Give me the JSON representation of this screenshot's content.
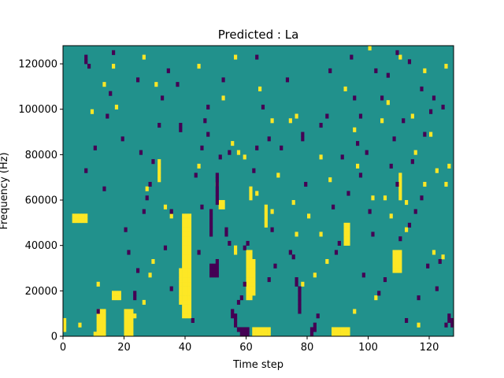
{
  "chart_data": {
    "type": "heatmap",
    "title": "Predicted : La",
    "xlabel": "Time step",
    "ylabel": "Frequency (Hz)",
    "xlim": [
      0,
      128
    ],
    "ylim": [
      0,
      128000
    ],
    "x_ticks": [
      0,
      20,
      40,
      60,
      80,
      100,
      120
    ],
    "y_ticks": [
      0,
      20000,
      40000,
      60000,
      80000,
      100000,
      120000
    ],
    "n_time_steps": 128,
    "n_freq_bins": 64,
    "value_levels": [
      -1,
      0,
      1
    ],
    "colors": {
      "-1": "#440154",
      "0": "#21918c",
      "1": "#fde725"
    },
    "background_value": 0,
    "grid": false,
    "cells_high": [
      [
        0,
        1
      ],
      [
        0,
        2
      ],
      [
        0,
        3
      ],
      [
        10,
        0
      ],
      [
        11,
        0
      ],
      [
        11,
        1
      ],
      [
        11,
        2
      ],
      [
        11,
        3
      ],
      [
        11,
        4
      ],
      [
        11,
        5
      ],
      [
        12,
        0
      ],
      [
        12,
        1
      ],
      [
        12,
        2
      ],
      [
        12,
        3
      ],
      [
        12,
        4
      ],
      [
        12,
        5
      ],
      [
        13,
        0
      ],
      [
        13,
        1
      ],
      [
        13,
        2
      ],
      [
        13,
        3
      ],
      [
        13,
        4
      ],
      [
        13,
        5
      ],
      [
        20,
        0
      ],
      [
        20,
        1
      ],
      [
        20,
        2
      ],
      [
        20,
        3
      ],
      [
        20,
        4
      ],
      [
        20,
        5
      ],
      [
        21,
        0
      ],
      [
        21,
        1
      ],
      [
        21,
        2
      ],
      [
        21,
        3
      ],
      [
        21,
        4
      ],
      [
        21,
        5
      ],
      [
        22,
        0
      ],
      [
        22,
        1
      ],
      [
        22,
        2
      ],
      [
        22,
        3
      ],
      [
        22,
        4
      ],
      [
        22,
        5
      ],
      [
        39,
        4
      ],
      [
        39,
        5
      ],
      [
        39,
        6
      ],
      [
        39,
        7
      ],
      [
        39,
        8
      ],
      [
        39,
        9
      ],
      [
        39,
        10
      ],
      [
        39,
        11
      ],
      [
        39,
        12
      ],
      [
        39,
        13
      ],
      [
        39,
        14
      ],
      [
        39,
        15
      ],
      [
        39,
        16
      ],
      [
        39,
        17
      ],
      [
        39,
        18
      ],
      [
        39,
        19
      ],
      [
        39,
        20
      ],
      [
        39,
        21
      ],
      [
        39,
        22
      ],
      [
        39,
        23
      ],
      [
        39,
        24
      ],
      [
        39,
        25
      ],
      [
        39,
        26
      ],
      [
        40,
        4
      ],
      [
        40,
        5
      ],
      [
        40,
        6
      ],
      [
        40,
        7
      ],
      [
        40,
        8
      ],
      [
        40,
        9
      ],
      [
        40,
        10
      ],
      [
        40,
        11
      ],
      [
        40,
        12
      ],
      [
        40,
        13
      ],
      [
        40,
        14
      ],
      [
        40,
        15
      ],
      [
        40,
        16
      ],
      [
        40,
        17
      ],
      [
        40,
        18
      ],
      [
        40,
        19
      ],
      [
        40,
        20
      ],
      [
        40,
        21
      ],
      [
        40,
        22
      ],
      [
        40,
        23
      ],
      [
        40,
        24
      ],
      [
        40,
        25
      ],
      [
        40,
        26
      ],
      [
        41,
        4
      ],
      [
        41,
        5
      ],
      [
        41,
        6
      ],
      [
        41,
        7
      ],
      [
        41,
        8
      ],
      [
        41,
        9
      ],
      [
        41,
        10
      ],
      [
        41,
        11
      ],
      [
        41,
        12
      ],
      [
        41,
        13
      ],
      [
        41,
        14
      ],
      [
        41,
        15
      ],
      [
        41,
        16
      ],
      [
        41,
        17
      ],
      [
        41,
        18
      ],
      [
        41,
        19
      ],
      [
        41,
        20
      ],
      [
        41,
        21
      ],
      [
        41,
        22
      ],
      [
        41,
        23
      ],
      [
        41,
        24
      ],
      [
        41,
        25
      ],
      [
        41,
        26
      ],
      [
        38,
        7
      ],
      [
        38,
        8
      ],
      [
        38,
        9
      ],
      [
        38,
        10
      ],
      [
        38,
        11
      ],
      [
        38,
        12
      ],
      [
        38,
        13
      ],
      [
        38,
        14
      ],
      [
        60,
        8
      ],
      [
        60,
        9
      ],
      [
        60,
        10
      ],
      [
        60,
        11
      ],
      [
        60,
        12
      ],
      [
        60,
        13
      ],
      [
        60,
        14
      ],
      [
        60,
        15
      ],
      [
        60,
        16
      ],
      [
        60,
        17
      ],
      [
        60,
        18
      ],
      [
        61,
        8
      ],
      [
        61,
        9
      ],
      [
        61,
        10
      ],
      [
        61,
        11
      ],
      [
        61,
        12
      ],
      [
        61,
        13
      ],
      [
        61,
        14
      ],
      [
        61,
        15
      ],
      [
        61,
        16
      ],
      [
        61,
        17
      ],
      [
        61,
        18
      ],
      [
        62,
        9
      ],
      [
        62,
        10
      ],
      [
        62,
        11
      ],
      [
        62,
        12
      ],
      [
        62,
        13
      ],
      [
        62,
        14
      ],
      [
        62,
        15
      ],
      [
        62,
        16
      ],
      [
        62,
        0
      ],
      [
        62,
        1
      ],
      [
        63,
        0
      ],
      [
        63,
        1
      ],
      [
        64,
        0
      ],
      [
        64,
        1
      ],
      [
        65,
        0
      ],
      [
        65,
        1
      ],
      [
        66,
        0
      ],
      [
        66,
        1
      ],
      [
        67,
        0
      ],
      [
        67,
        1
      ],
      [
        88,
        0
      ],
      [
        88,
        1
      ],
      [
        89,
        0
      ],
      [
        89,
        1
      ],
      [
        90,
        0
      ],
      [
        90,
        1
      ],
      [
        91,
        0
      ],
      [
        91,
        1
      ],
      [
        92,
        0
      ],
      [
        92,
        1
      ],
      [
        93,
        0
      ],
      [
        93,
        1
      ],
      [
        108,
        14
      ],
      [
        108,
        15
      ],
      [
        108,
        16
      ],
      [
        108,
        17
      ],
      [
        108,
        18
      ],
      [
        109,
        14
      ],
      [
        109,
        15
      ],
      [
        109,
        16
      ],
      [
        109,
        17
      ],
      [
        109,
        18
      ],
      [
        110,
        14
      ],
      [
        110,
        15
      ],
      [
        110,
        16
      ],
      [
        110,
        17
      ],
      [
        110,
        18
      ],
      [
        3,
        25
      ],
      [
        3,
        26
      ],
      [
        4,
        25
      ],
      [
        4,
        26
      ],
      [
        5,
        25
      ],
      [
        5,
        26
      ],
      [
        6,
        25
      ],
      [
        6,
        26
      ],
      [
        7,
        25
      ],
      [
        7,
        26
      ],
      [
        31,
        34
      ],
      [
        31,
        35
      ],
      [
        31,
        36
      ],
      [
        31,
        37
      ],
      [
        31,
        38
      ],
      [
        51,
        28
      ],
      [
        51,
        29
      ],
      [
        52,
        28
      ],
      [
        52,
        29
      ],
      [
        61,
        30
      ],
      [
        61,
        31
      ],
      [
        61,
        32
      ],
      [
        66,
        24
      ],
      [
        66,
        25
      ],
      [
        66,
        26
      ],
      [
        66,
        27
      ],
      [
        66,
        28
      ],
      [
        92,
        20
      ],
      [
        92,
        21
      ],
      [
        92,
        22
      ],
      [
        92,
        23
      ],
      [
        92,
        24
      ],
      [
        93,
        20
      ],
      [
        93,
        21
      ],
      [
        93,
        22
      ],
      [
        93,
        23
      ],
      [
        93,
        24
      ],
      [
        110,
        30
      ],
      [
        110,
        31
      ],
      [
        110,
        32
      ],
      [
        110,
        33
      ],
      [
        110,
        34
      ],
      [
        110,
        35
      ],
      [
        16,
        8
      ],
      [
        16,
        9
      ],
      [
        17,
        8
      ],
      [
        17,
        9
      ],
      [
        18,
        8
      ],
      [
        18,
        9
      ],
      [
        11,
        11
      ],
      [
        26,
        7
      ],
      [
        28,
        13
      ],
      [
        29,
        16
      ],
      [
        56,
        18
      ],
      [
        56,
        19
      ],
      [
        68,
        27
      ],
      [
        76,
        22
      ],
      [
        78,
        11
      ],
      [
        82,
        13
      ],
      [
        84,
        22
      ],
      [
        86,
        16
      ],
      [
        95,
        5
      ],
      [
        102,
        8
      ],
      [
        105,
        30
      ],
      [
        107,
        26
      ],
      [
        112,
        23
      ],
      [
        116,
        2
      ],
      [
        121,
        18
      ],
      [
        124,
        17
      ],
      [
        125,
        33
      ],
      [
        126,
        37
      ],
      [
        16,
        59
      ],
      [
        17,
        50
      ],
      [
        26,
        61
      ],
      [
        30,
        55
      ],
      [
        44,
        59
      ],
      [
        52,
        52
      ],
      [
        56,
        61
      ],
      [
        64,
        54
      ],
      [
        68,
        47
      ],
      [
        76,
        48
      ],
      [
        92,
        54
      ],
      [
        104,
        47
      ],
      [
        110,
        61
      ],
      [
        114,
        48
      ],
      [
        118,
        58
      ],
      [
        125,
        59
      ],
      [
        9,
        49
      ],
      [
        13,
        55
      ],
      [
        55,
        42
      ],
      [
        59,
        39
      ],
      [
        74,
        47
      ],
      [
        84,
        39
      ],
      [
        95,
        45
      ],
      [
        100,
        63
      ],
      [
        106,
        51
      ],
      [
        115,
        40
      ],
      [
        120,
        44
      ],
      [
        5,
        2
      ],
      [
        23,
        4
      ],
      [
        27,
        32
      ],
      [
        33,
        28
      ],
      [
        35,
        26
      ],
      [
        44,
        37
      ],
      [
        50,
        33
      ],
      [
        57,
        40
      ],
      [
        63,
        31
      ],
      [
        70,
        35
      ],
      [
        75,
        29
      ],
      [
        80,
        26
      ],
      [
        87,
        34
      ],
      [
        96,
        37
      ],
      [
        101,
        30
      ],
      [
        112,
        29
      ],
      [
        118,
        33
      ],
      [
        122,
        36
      ]
    ],
    "cells_low": [
      [
        7,
        60
      ],
      [
        7,
        61
      ],
      [
        8,
        59
      ],
      [
        10,
        41
      ],
      [
        15,
        53
      ],
      [
        16,
        62
      ],
      [
        19,
        43
      ],
      [
        21,
        18
      ],
      [
        23,
        8
      ],
      [
        23,
        9
      ],
      [
        24,
        56
      ],
      [
        25,
        40
      ],
      [
        27,
        30
      ],
      [
        28,
        33
      ],
      [
        31,
        46
      ],
      [
        33,
        19
      ],
      [
        34,
        58
      ],
      [
        35,
        27
      ],
      [
        38,
        45
      ],
      [
        38,
        46
      ],
      [
        43,
        35
      ],
      [
        44,
        18
      ],
      [
        45,
        41
      ],
      [
        46,
        47
      ],
      [
        47,
        44
      ],
      [
        48,
        22
      ],
      [
        48,
        23
      ],
      [
        48,
        24
      ],
      [
        48,
        25
      ],
      [
        48,
        26
      ],
      [
        48,
        27
      ],
      [
        48,
        13
      ],
      [
        48,
        14
      ],
      [
        48,
        15
      ],
      [
        49,
        13
      ],
      [
        49,
        14
      ],
      [
        49,
        15
      ],
      [
        50,
        13
      ],
      [
        50,
        14
      ],
      [
        50,
        15
      ],
      [
        50,
        16
      ],
      [
        50,
        29
      ],
      [
        50,
        30
      ],
      [
        50,
        31
      ],
      [
        50,
        32
      ],
      [
        50,
        33
      ],
      [
        50,
        34
      ],
      [
        50,
        35
      ],
      [
        51,
        39
      ],
      [
        53,
        22
      ],
      [
        53,
        23
      ],
      [
        54,
        20
      ],
      [
        55,
        4
      ],
      [
        55,
        5
      ],
      [
        56,
        2
      ],
      [
        56,
        3
      ],
      [
        56,
        4
      ],
      [
        57,
        1
      ],
      [
        58,
        0
      ],
      [
        58,
        1
      ],
      [
        59,
        0
      ],
      [
        59,
        1
      ],
      [
        60,
        0
      ],
      [
        60,
        1
      ],
      [
        57,
        7
      ],
      [
        58,
        8
      ],
      [
        59,
        11
      ],
      [
        60,
        20
      ],
      [
        62,
        36
      ],
      [
        63,
        41
      ],
      [
        65,
        50
      ],
      [
        67,
        43
      ],
      [
        68,
        23
      ],
      [
        69,
        15
      ],
      [
        74,
        18
      ],
      [
        75,
        17
      ],
      [
        76,
        12
      ],
      [
        76,
        11
      ],
      [
        77,
        5
      ],
      [
        77,
        6
      ],
      [
        77,
        7
      ],
      [
        77,
        8
      ],
      [
        77,
        9
      ],
      [
        77,
        10
      ],
      [
        78,
        43
      ],
      [
        78,
        44
      ],
      [
        81,
        0
      ],
      [
        81,
        1
      ],
      [
        82,
        1
      ],
      [
        82,
        2
      ],
      [
        83,
        4
      ],
      [
        84,
        46
      ],
      [
        87,
        58
      ],
      [
        89,
        18
      ],
      [
        91,
        39
      ],
      [
        94,
        61
      ],
      [
        95,
        52
      ],
      [
        96,
        42
      ],
      [
        97,
        35
      ],
      [
        98,
        13
      ],
      [
        99,
        40
      ],
      [
        100,
        27
      ],
      [
        101,
        22
      ],
      [
        103,
        9
      ],
      [
        104,
        52
      ],
      [
        106,
        57
      ],
      [
        107,
        37
      ],
      [
        108,
        43
      ],
      [
        109,
        62
      ],
      [
        110,
        21
      ],
      [
        111,
        47
      ],
      [
        112,
        3
      ],
      [
        113,
        24
      ],
      [
        114,
        38
      ],
      [
        115,
        27
      ],
      [
        116,
        8
      ],
      [
        117,
        54
      ],
      [
        118,
        44
      ],
      [
        119,
        15
      ],
      [
        120,
        49
      ],
      [
        122,
        10
      ],
      [
        124,
        50
      ],
      [
        125,
        2
      ],
      [
        126,
        4
      ],
      [
        126,
        3
      ],
      [
        127,
        2
      ],
      [
        127,
        3
      ],
      [
        7,
        36
      ],
      [
        11,
        5
      ],
      [
        13,
        32
      ],
      [
        14,
        48
      ],
      [
        20,
        23
      ],
      [
        24,
        14
      ],
      [
        26,
        27
      ],
      [
        29,
        38
      ],
      [
        32,
        52
      ],
      [
        35,
        10
      ],
      [
        37,
        55
      ],
      [
        42,
        3
      ],
      [
        45,
        28
      ],
      [
        47,
        50
      ],
      [
        52,
        56
      ],
      [
        54,
        40
      ],
      [
        59,
        19
      ],
      [
        63,
        61
      ],
      [
        67,
        12
      ],
      [
        71,
        41
      ],
      [
        73,
        56
      ],
      [
        79,
        33
      ],
      [
        86,
        48
      ],
      [
        88,
        28
      ],
      [
        90,
        20
      ],
      [
        93,
        31
      ],
      [
        97,
        48
      ],
      [
        102,
        58
      ],
      [
        105,
        12
      ],
      [
        109,
        33
      ],
      [
        113,
        60
      ],
      [
        117,
        30
      ],
      [
        121,
        52
      ],
      [
        123,
        16
      ]
    ]
  }
}
